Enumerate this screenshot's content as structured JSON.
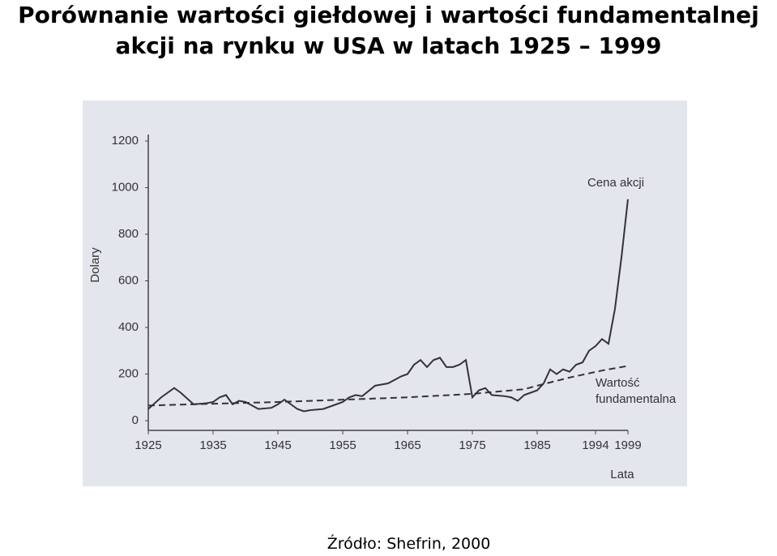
{
  "chart_data": {
    "type": "line",
    "title": "Porównanie wartości giełdowej i wartości fundamentalnej akcji na rynku w USA w latach 1925 – 1999",
    "y_label": "Dolary",
    "x_label": "Lata",
    "source": "Źródło: Shefrin, 2000",
    "xlim": [
      1925,
      1999
    ],
    "xticks": [
      1925,
      1935,
      1945,
      1955,
      1965,
      1975,
      1985,
      1994,
      1999
    ],
    "ylim": [
      0,
      1200
    ],
    "yticks": [
      0,
      200,
      400,
      600,
      800,
      1000,
      1200
    ],
    "series": [
      {
        "name": "Cena akcji",
        "color": "#333333",
        "dash": false,
        "x": [
          1925,
          1926,
          1927,
          1929,
          1930,
          1932,
          1934,
          1935,
          1936,
          1937,
          1938,
          1939,
          1940,
          1942,
          1944,
          1945,
          1946,
          1947,
          1948,
          1949,
          1950,
          1952,
          1954,
          1955,
          1956,
          1957,
          1958,
          1960,
          1962,
          1964,
          1965,
          1966,
          1967,
          1968,
          1969,
          1970,
          1971,
          1972,
          1973,
          1974,
          1975,
          1976,
          1977,
          1978,
          1980,
          1981,
          1982,
          1983,
          1984,
          1985,
          1986,
          1987,
          1988,
          1989,
          1990,
          1991,
          1992,
          1993,
          1994,
          1995,
          1996,
          1997,
          1998,
          1999
        ],
        "values": [
          50,
          75,
          100,
          140,
          120,
          70,
          75,
          80,
          100,
          110,
          70,
          85,
          80,
          50,
          55,
          70,
          90,
          70,
          50,
          40,
          45,
          50,
          70,
          80,
          100,
          110,
          105,
          150,
          160,
          190,
          200,
          240,
          260,
          230,
          260,
          270,
          230,
          230,
          240,
          260,
          100,
          130,
          140,
          110,
          105,
          100,
          85,
          110,
          120,
          130,
          160,
          220,
          200,
          220,
          210,
          240,
          250,
          300,
          320,
          350,
          330,
          480,
          700,
          950
        ]
      },
      {
        "name": "Wartość fundamentalna",
        "color": "#333333",
        "dash": true,
        "x": [
          1925,
          1945,
          1955,
          1965,
          1975,
          1983,
          1985,
          1990,
          1995,
          1999
        ],
        "values": [
          65,
          80,
          90,
          100,
          115,
          135,
          150,
          185,
          215,
          235
        ]
      }
    ]
  }
}
